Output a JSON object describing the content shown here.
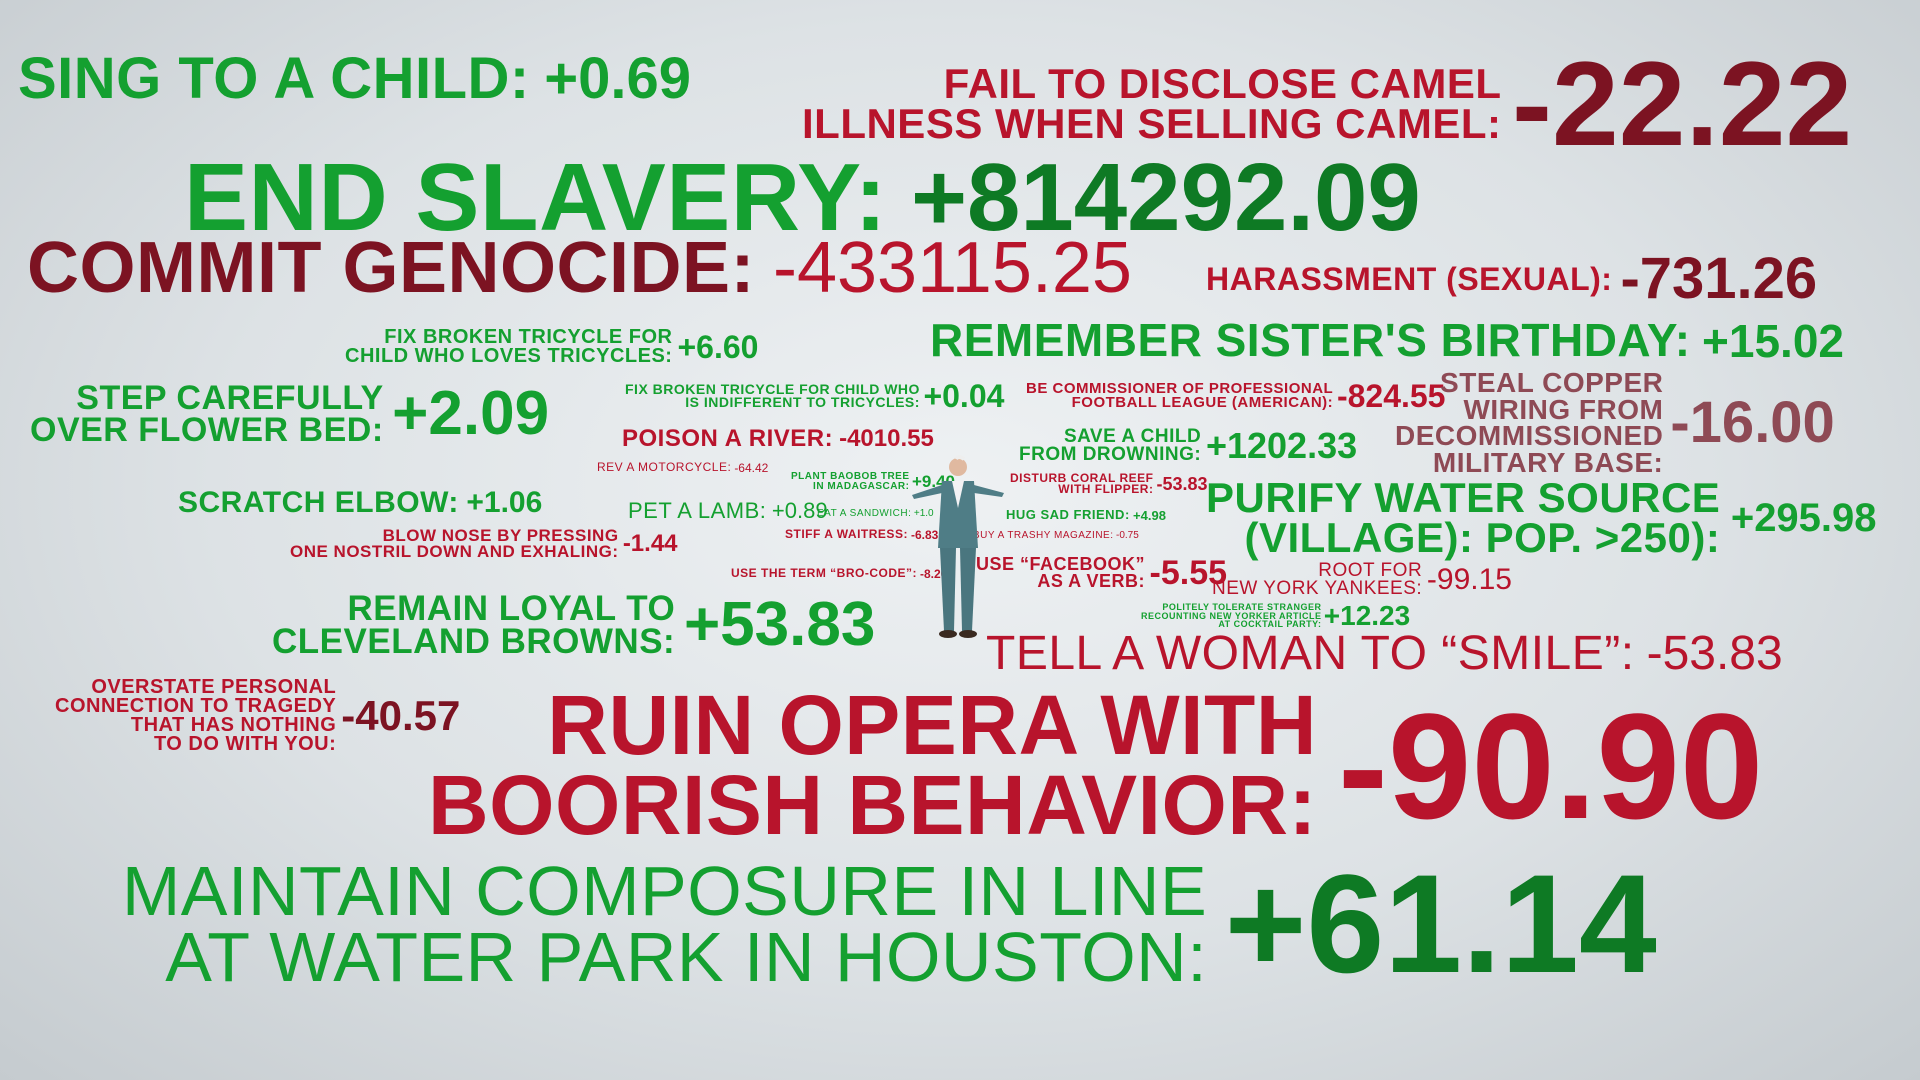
{
  "colors": {
    "positive": "#14a030",
    "positive_dark": "#0e7a24",
    "negative": "#b8142c",
    "negative_dark": "#7c1322"
  },
  "items": [
    {
      "label": [
        "SING TO A CHILD:"
      ],
      "value": "+0.69",
      "tone": "positive"
    },
    {
      "label": [
        "FAIL TO DISCLOSE CAMEL",
        "ILLNESS WHEN SELLING CAMEL:"
      ],
      "value": "-22.22",
      "tone": "negative"
    },
    {
      "label": [
        "END SLAVERY:"
      ],
      "value": "+814292.09",
      "tone": "positive"
    },
    {
      "label": [
        "COMMIT GENOCIDE:"
      ],
      "value": "-433115.25",
      "tone": "negative"
    },
    {
      "label": [
        "HARASSMENT (SEXUAL):"
      ],
      "value": "-731.26",
      "tone": "negative"
    },
    {
      "label": [
        "FIX BROKEN TRICYCLE FOR",
        "CHILD WHO LOVES TRICYCLES:"
      ],
      "value": "+6.60",
      "tone": "positive"
    },
    {
      "label": [
        "REMEMBER SISTER'S BIRTHDAY:"
      ],
      "value": "+15.02",
      "tone": "positive"
    },
    {
      "label": [
        "STEP CAREFULLY",
        "OVER FLOWER BED:"
      ],
      "value": "+2.09",
      "tone": "positive"
    },
    {
      "label": [
        "FIX BROKEN TRICYCLE FOR CHILD WHO",
        "IS INDIFFERENT TO TRICYCLES:"
      ],
      "value": "+0.04",
      "tone": "positive"
    },
    {
      "label": [
        "BE COMMISSIONER OF PROFESSIONAL",
        "FOOTBALL LEAGUE (AMERICAN):"
      ],
      "value": "-824.55",
      "tone": "negative"
    },
    {
      "label": [
        "STEAL COPPER",
        "WIRING FROM",
        "DECOMMISSIONED",
        "MILITARY BASE:"
      ],
      "value": "-16.00",
      "tone": "negative"
    },
    {
      "label": [
        "POISON A RIVER:"
      ],
      "value": "-4010.55",
      "tone": "negative"
    },
    {
      "label": [
        "SAVE A CHILD",
        "FROM DROWNING:"
      ],
      "value": "+1202.33",
      "tone": "positive"
    },
    {
      "label": [
        "REV A MOTORCYCLE:"
      ],
      "value": "-64.42",
      "tone": "negative"
    },
    {
      "label": [
        "PLANT BAOBOB TREE",
        "IN MADAGASCAR:"
      ],
      "value": "+9.40",
      "tone": "positive"
    },
    {
      "label": [
        "DISTURB CORAL REEF",
        "WITH FLIPPER:"
      ],
      "value": "-53.83",
      "tone": "negative"
    },
    {
      "label": [
        "SCRATCH ELBOW:"
      ],
      "value": "+1.06",
      "tone": "positive"
    },
    {
      "label": [
        "PURIFY WATER SOURCE",
        "(VILLAGE): POP. >250):"
      ],
      "value": "+295.98",
      "tone": "positive"
    },
    {
      "label": [
        "PET A LAMB:"
      ],
      "value": "+0.89",
      "tone": "positive"
    },
    {
      "label": [
        "EAT A SANDWICH:"
      ],
      "value": "+1.0",
      "tone": "positive"
    },
    {
      "label": [
        "HUG SAD FRIEND:"
      ],
      "value": "+4.98",
      "tone": "positive"
    },
    {
      "label": [
        "BLOW NOSE BY PRESSING",
        "ONE NOSTRIL DOWN AND EXHALING:"
      ],
      "value": "-1.44",
      "tone": "negative"
    },
    {
      "label": [
        "STIFF A WAITRESS:"
      ],
      "value": "-6.83",
      "tone": "negative"
    },
    {
      "label": [
        "BUY A TRASHY MAGAZINE:"
      ],
      "value": "-0.75",
      "tone": "negative"
    },
    {
      "label": [
        "USE THE TERM “BRO-CODE”:"
      ],
      "value": "-8.20",
      "tone": "negative"
    },
    {
      "label": [
        "USE “FACEBOOK”",
        "AS A VERB:"
      ],
      "value": "-5.55",
      "tone": "negative"
    },
    {
      "label": [
        "ROOT FOR",
        "NEW YORK YANKEES:"
      ],
      "value": "-99.15",
      "tone": "negative"
    },
    {
      "label": [
        "POLITELY TOLERATE STRANGER",
        "RECOUNTING NEW YORKER ARTICLE",
        "AT COCKTAIL PARTY:"
      ],
      "value": "+12.23",
      "tone": "positive"
    },
    {
      "label": [
        "REMAIN LOYAL TO",
        "CLEVELAND BROWNS:"
      ],
      "value": "+53.83",
      "tone": "positive"
    },
    {
      "label": [
        "TELL A WOMAN TO “SMILE”:"
      ],
      "value": "-53.83",
      "tone": "negative"
    },
    {
      "label": [
        "OVERSTATE PERSONAL",
        "CONNECTION TO TRAGEDY",
        "THAT HAS NOTHING",
        "TO DO WITH YOU:"
      ],
      "value": "-40.57",
      "tone": "negative"
    },
    {
      "label": [
        "RUIN OPERA WITH",
        "BOORISH BEHAVIOR:"
      ],
      "value": "-90.90",
      "tone": "negative"
    },
    {
      "label": [
        "MAINTAIN COMPOSURE IN LINE",
        "AT WATER PARK IN HOUSTON:"
      ],
      "value": "+61.14",
      "tone": "positive"
    }
  ]
}
